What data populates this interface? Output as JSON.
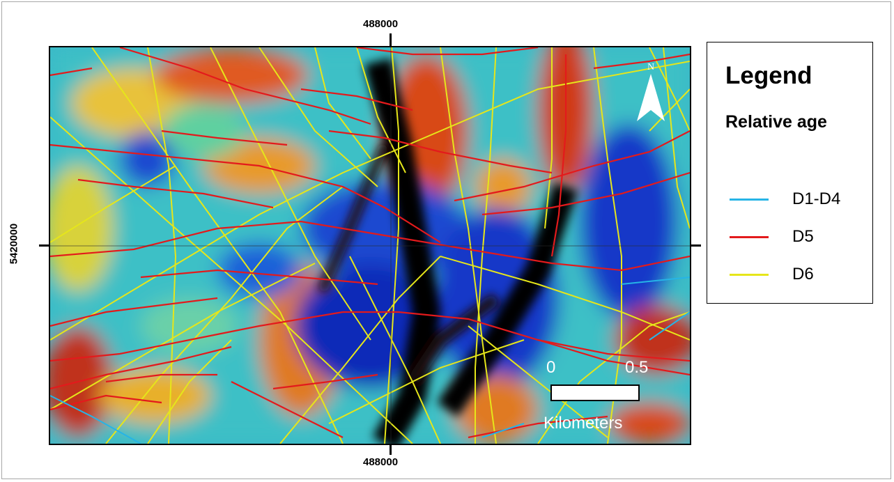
{
  "map": {
    "coord_x_top": "488000",
    "coord_x_bottom": "488000",
    "coord_y_left": "5420000"
  },
  "legend": {
    "title": "Legend",
    "subtitle": "Relative age",
    "items": [
      {
        "label": "D1-D4",
        "color": "#26b4e6"
      },
      {
        "label": "D5",
        "color": "#e31a1c"
      },
      {
        "label": "D6",
        "color": "#e6e61a"
      }
    ]
  },
  "scale": {
    "label_start": "0",
    "label_end": "0.5",
    "units": "Kilometers"
  },
  "north_arrow": {
    "label": "N",
    "icon": "north-arrow-icon"
  },
  "colors": {
    "raster_low": "#0a1a7a",
    "raster_mid": "#3ab8c8",
    "raster_high": "#c0301a",
    "raster_black": "#050505"
  }
}
